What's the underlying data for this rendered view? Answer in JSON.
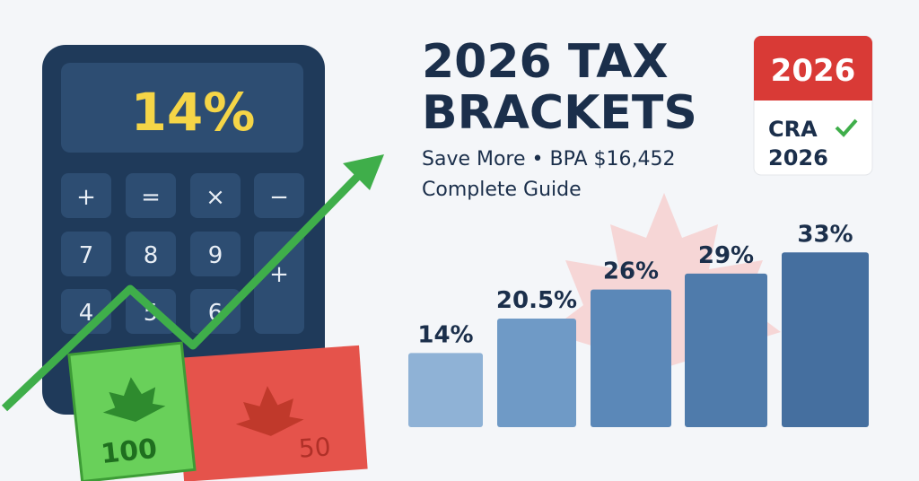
{
  "title_line1": "2026 TAX",
  "title_line2": "BRACKETS",
  "subtitle": "Save More • BPA $16,452",
  "guide": "Complete Guide",
  "badge": {
    "year": "2026",
    "label": "CRA",
    "year2": "2026"
  },
  "calculator": {
    "display": "14%",
    "keys": [
      "+",
      "=",
      "×",
      "−",
      "7",
      "8",
      "9",
      "4",
      "5",
      "6",
      "+"
    ]
  },
  "banknotes": [
    "100",
    "50"
  ],
  "chart_data": {
    "type": "bar",
    "values": [
      14,
      20.5,
      26,
      29,
      33
    ],
    "value_labels": [
      "14%",
      "20.5%",
      "26%",
      "29%",
      "33%"
    ],
    "colors": [
      "#8fb2d6",
      "#6f9ac6",
      "#5b88b8",
      "#4f7bab",
      "#456f9f"
    ]
  }
}
